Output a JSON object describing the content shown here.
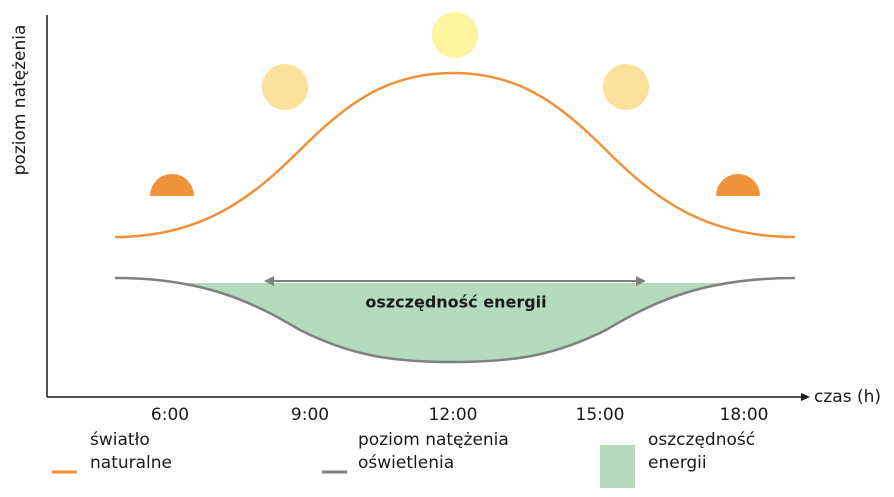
{
  "y_axis_label": "poziom natężenia",
  "x_axis_label": "czas (h)",
  "x_labels": [
    "6:00",
    "9:00",
    "12:00",
    "15:00",
    "18:00"
  ],
  "annotation": "oszczędność energii",
  "legend": [
    {
      "lines": [
        "światło",
        "naturalne"
      ]
    },
    {
      "lines": [
        "poziom natężenia",
        "oświetlenia"
      ]
    },
    {
      "lines": [
        "oszczędność",
        "energii"
      ]
    }
  ]
}
